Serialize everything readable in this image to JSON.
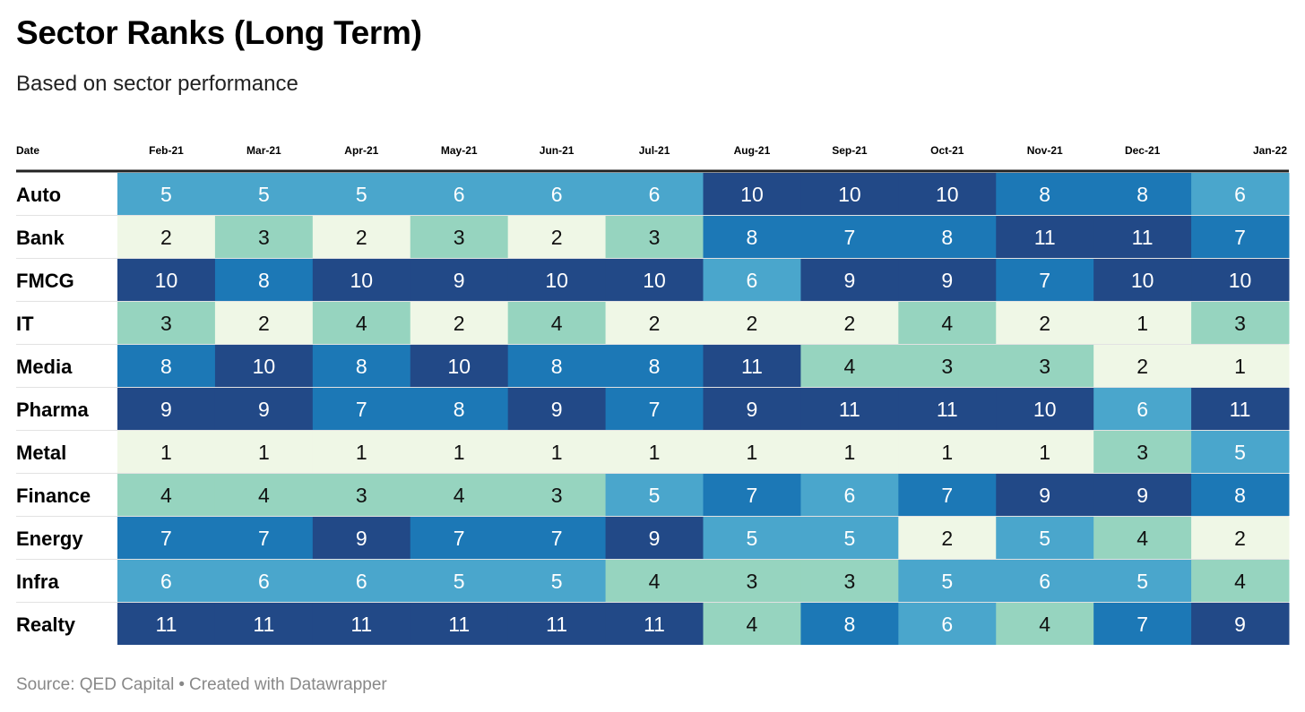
{
  "title": "Sector Ranks (Long Term)",
  "subtitle": "Based on sector performance",
  "footer": {
    "source": "Source: QED Capital",
    "credit": "Created with Datawrapper"
  },
  "chart_data": {
    "type": "heatmap",
    "title": "Sector Ranks (Long Term)",
    "subtitle": "Based on sector performance",
    "row_header": "Date",
    "columns": [
      "Feb-21",
      "Mar-21",
      "Apr-21",
      "May-21",
      "Jun-21",
      "Jul-21",
      "Aug-21",
      "Sep-21",
      "Oct-21",
      "Nov-21",
      "Dec-21",
      "Jan-22"
    ],
    "rows": [
      {
        "name": "Auto",
        "values": [
          5,
          5,
          5,
          6,
          6,
          6,
          10,
          10,
          10,
          8,
          8,
          6
        ]
      },
      {
        "name": "Bank",
        "values": [
          2,
          3,
          2,
          3,
          2,
          3,
          8,
          7,
          8,
          11,
          11,
          7
        ]
      },
      {
        "name": "FMCG",
        "values": [
          10,
          8,
          10,
          9,
          10,
          10,
          6,
          9,
          9,
          7,
          10,
          10
        ]
      },
      {
        "name": "IT",
        "values": [
          3,
          2,
          4,
          2,
          4,
          2,
          2,
          2,
          4,
          2,
          1,
          3
        ]
      },
      {
        "name": "Media",
        "values": [
          8,
          10,
          8,
          10,
          8,
          8,
          11,
          4,
          3,
          3,
          2,
          1
        ]
      },
      {
        "name": "Pharma",
        "values": [
          9,
          9,
          7,
          8,
          9,
          7,
          9,
          11,
          11,
          10,
          6,
          11
        ]
      },
      {
        "name": "Metal",
        "values": [
          1,
          1,
          1,
          1,
          1,
          1,
          1,
          1,
          1,
          1,
          3,
          5
        ]
      },
      {
        "name": "Finance",
        "values": [
          4,
          4,
          3,
          4,
          3,
          5,
          7,
          6,
          7,
          9,
          9,
          8
        ]
      },
      {
        "name": "Energy",
        "values": [
          7,
          7,
          9,
          7,
          7,
          9,
          5,
          5,
          2,
          5,
          4,
          2
        ]
      },
      {
        "name": "Infra",
        "values": [
          6,
          6,
          6,
          5,
          5,
          4,
          3,
          3,
          5,
          6,
          5,
          4
        ]
      },
      {
        "name": "Realty",
        "values": [
          11,
          11,
          11,
          11,
          11,
          11,
          4,
          8,
          6,
          4,
          7,
          9
        ]
      }
    ],
    "value_range": [
      1,
      11
    ],
    "color_scale": [
      {
        "min": 1,
        "max": 2,
        "color": "#eff7e6"
      },
      {
        "min": 3,
        "max": 4,
        "color": "#96d4bf"
      },
      {
        "min": 5,
        "max": 6,
        "color": "#4aa6cc"
      },
      {
        "min": 7,
        "max": 8,
        "color": "#1c78b6"
      },
      {
        "min": 9,
        "max": 11,
        "color": "#224987"
      }
    ],
    "dark_text_max": 4,
    "text_dark": "#111111",
    "text_light": "#ffffff",
    "grid": false
  }
}
